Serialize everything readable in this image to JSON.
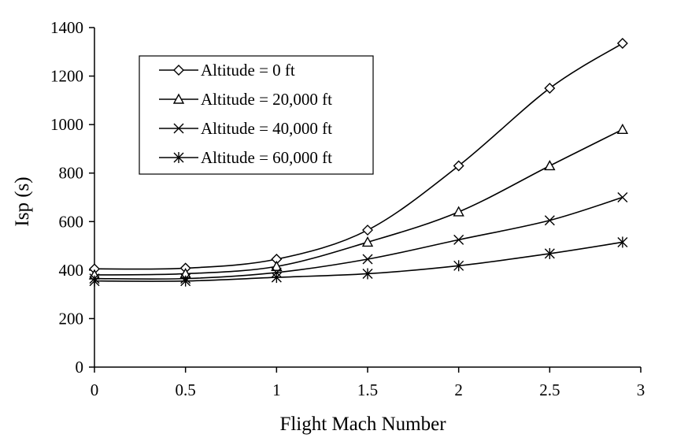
{
  "chart_data": {
    "type": "line",
    "title": "",
    "xlabel": "Flight Mach Number",
    "ylabel": "Isp (s)",
    "xlim": [
      0,
      3
    ],
    "ylim": [
      0,
      1400
    ],
    "x_ticks": [
      "0",
      "0.5",
      "1",
      "1.5",
      "2",
      "2.5",
      "3"
    ],
    "y_ticks": [
      "0",
      "200",
      "400",
      "600",
      "800",
      "1000",
      "1200",
      "1400"
    ],
    "grid": false,
    "legend_position": "top-left",
    "series": [
      {
        "name": "Altitude = 0 ft",
        "marker": "diamond",
        "x": [
          0,
          0.5,
          1,
          1.5,
          2,
          2.5,
          2.9
        ],
        "y": [
          405,
          408,
          445,
          565,
          830,
          1150,
          1335
        ]
      },
      {
        "name": "Altitude = 20,000 ft",
        "marker": "triangle",
        "x": [
          0,
          0.5,
          1,
          1.5,
          2,
          2.5,
          2.9
        ],
        "y": [
          380,
          385,
          415,
          515,
          640,
          830,
          980
        ]
      },
      {
        "name": "Altitude = 40,000 ft",
        "marker": "x",
        "x": [
          0,
          0.5,
          1,
          1.5,
          2,
          2.5,
          2.9
        ],
        "y": [
          365,
          365,
          390,
          445,
          525,
          605,
          700
        ]
      },
      {
        "name": "Altitude = 60,000 ft",
        "marker": "asterisk",
        "x": [
          0,
          0.5,
          1,
          1.5,
          2,
          2.5,
          2.9
        ],
        "y": [
          355,
          355,
          370,
          385,
          418,
          468,
          515
        ]
      }
    ]
  }
}
